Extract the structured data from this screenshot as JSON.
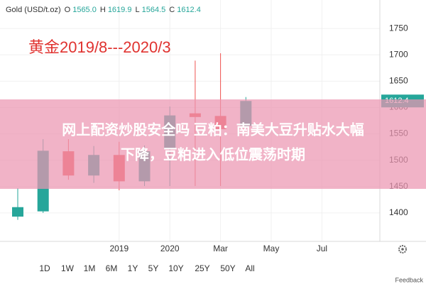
{
  "chart_data": {
    "type": "candlestick",
    "symbol": "Gold (USD/t.oz)",
    "header_letters": [
      "O",
      "H",
      "L",
      "C"
    ],
    "header_labels": [
      "1565.0",
      "1619.9",
      "1564.5",
      "1612.4"
    ],
    "annotation": "黄金2019/8---2020/3",
    "banner": [
      "网上配资炒股安全吗 豆粕：南美大豆升贴水大幅",
      "下降，豆粕进入低位震荡时期"
    ],
    "categories": [
      null,
      null,
      null,
      null,
      "2019",
      null,
      "2020",
      null,
      "Mar",
      null,
      "May",
      null,
      "Jul"
    ],
    "open": [
      1393,
      1403,
      1517,
      1471,
      1510,
      1460,
      1521,
      1589,
      1584,
      1565,
      null,
      null,
      null
    ],
    "high": [
      1447,
      1540,
      1540,
      1527,
      1535,
      1528,
      1602,
      1689,
      1703,
      1619.9,
      null,
      null,
      null
    ],
    "low": [
      1387,
      1400,
      1463,
      1457,
      1443,
      1451,
      1451,
      1451,
      1451,
      1564.5,
      null,
      null,
      null
    ],
    "close": [
      1411,
      1518,
      1471,
      1510,
      1460,
      1517,
      1585,
      1582,
      1559,
      1612.4,
      null,
      null,
      null
    ],
    "up_color": "#26a69a",
    "down_color": "#ef5350",
    "ylim": [
      1346,
      1804
    ],
    "yticks": [
      1400,
      1450,
      1500,
      1550,
      1600,
      1650,
      1700,
      1750
    ],
    "grid": true,
    "ranges": [
      "1D",
      "1W",
      "1M",
      "6M",
      "1Y",
      "5Y",
      "10Y",
      "25Y",
      "50Y",
      "All"
    ],
    "feedback": "Feedback"
  }
}
